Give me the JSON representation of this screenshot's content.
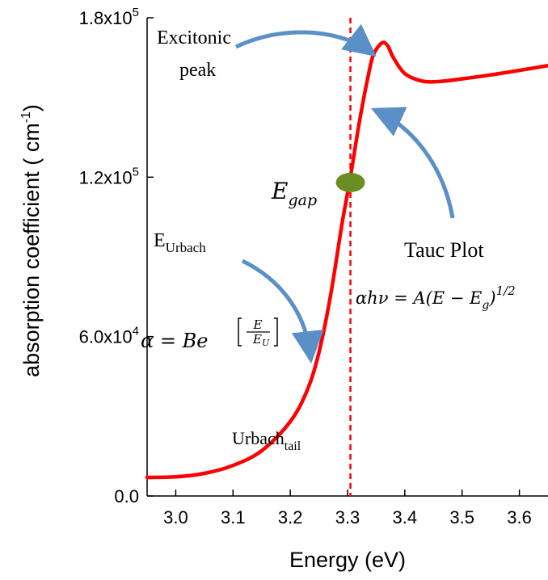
{
  "chart_data": {
    "type": "line",
    "xlabel": "Energy (eV)",
    "ylabel_main": "absorption coefficient ( cm",
    "ylabel_sup": "-1",
    "ylabel_close": ")",
    "xlim": [
      2.95,
      3.65
    ],
    "ylim": [
      0,
      180000
    ],
    "x_ticks": [
      {
        "value": 3.0,
        "label": "3.0"
      },
      {
        "value": 3.1,
        "label": "3.1"
      },
      {
        "value": 3.2,
        "label": "3.2"
      },
      {
        "value": 3.3,
        "label": "3.3"
      },
      {
        "value": 3.4,
        "label": "3.4"
      },
      {
        "value": 3.5,
        "label": "3.5"
      },
      {
        "value": 3.6,
        "label": "3.6"
      }
    ],
    "y_ticks": [
      {
        "value": 0,
        "base": "0.0",
        "exp": ""
      },
      {
        "value": 60000,
        "base": "6.0x10",
        "exp": "4"
      },
      {
        "value": 120000,
        "base": "1.2x10",
        "exp": "5"
      },
      {
        "value": 180000,
        "base": "1.8x10",
        "exp": "5"
      }
    ],
    "series": [
      {
        "color": "#ff0000",
        "points": [
          [
            2.95,
            7000
          ],
          [
            3.0,
            7200
          ],
          [
            3.05,
            8500
          ],
          [
            3.1,
            11500
          ],
          [
            3.15,
            17000
          ],
          [
            3.2,
            28000
          ],
          [
            3.23,
            40000
          ],
          [
            3.25,
            54000
          ],
          [
            3.27,
            75000
          ],
          [
            3.29,
            102000
          ],
          [
            3.305,
            120000
          ],
          [
            3.32,
            140000
          ],
          [
            3.335,
            157000
          ],
          [
            3.345,
            166000
          ],
          [
            3.36,
            170500
          ],
          [
            3.37,
            169500
          ],
          [
            3.38,
            165000
          ],
          [
            3.4,
            159000
          ],
          [
            3.43,
            156200
          ],
          [
            3.46,
            156000
          ],
          [
            3.5,
            157000
          ],
          [
            3.55,
            158500
          ],
          [
            3.6,
            160200
          ],
          [
            3.65,
            162000
          ]
        ]
      }
    ],
    "vline": {
      "x": 3.305,
      "color": "#ff0000",
      "style": "dashed"
    },
    "marker": {
      "x": 3.305,
      "y": 118000,
      "color": "#6b8e23"
    },
    "annotations": {
      "excitonic_line1": "Excitonic",
      "excitonic_line2": "peak",
      "egap_main": "E",
      "egap_sub": "gap",
      "urbach_main": "E",
      "urbach_sub": "Urbach",
      "urbach_eq_lhs": "α = Be",
      "urbach_eq_num": "E",
      "urbach_eq_den_main": "E",
      "urbach_eq_den_sub": "U",
      "tauc_title": "Tauc Plot",
      "tauc_eq_a": "αhν = A(E − E",
      "tauc_eq_sub": "g",
      "tauc_eq_b": ")",
      "tauc_eq_sup": "1/2",
      "tail_main": "Urbach",
      "tail_sub": "tail"
    },
    "arrow_color": "#5b8fc7"
  }
}
